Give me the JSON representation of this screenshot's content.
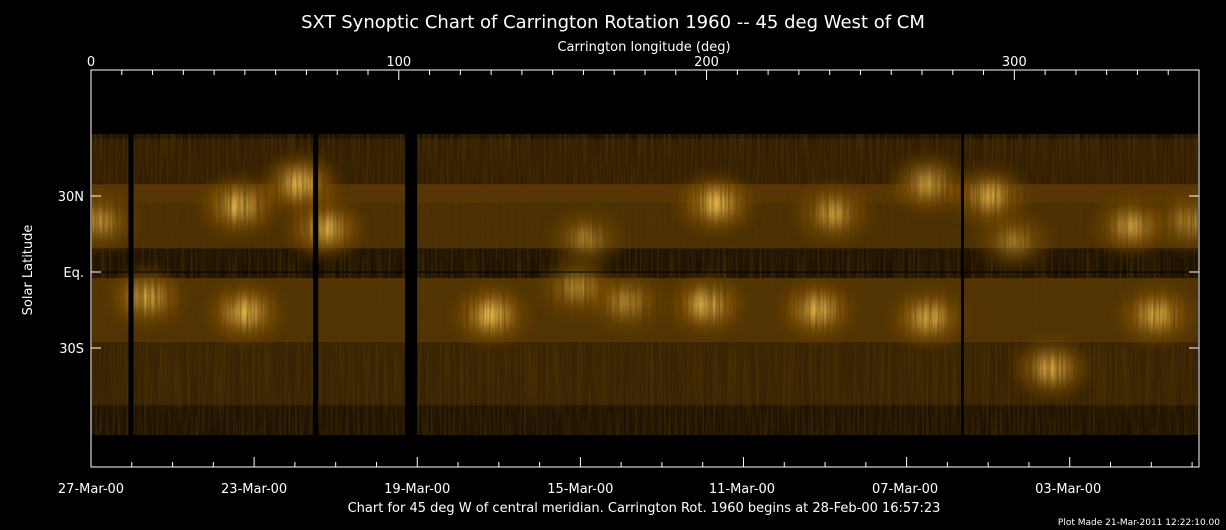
{
  "chart_data": {
    "type": "heatmap",
    "title": "SXT Synoptic Chart of Carrington Rotation 1960 -- 45 deg West of CM",
    "top_axis": {
      "label": "Carrington longitude (deg)",
      "range": [
        0,
        360
      ],
      "ticks": [
        {
          "value": 0,
          "label": "0"
        },
        {
          "value": 100,
          "label": "100"
        },
        {
          "value": 200,
          "label": "200"
        },
        {
          "value": 300,
          "label": "300"
        }
      ]
    },
    "y_axis": {
      "label": "Solar Latitude",
      "ticks": [
        {
          "value": 30,
          "label": "30N"
        },
        {
          "value": 0,
          "label": "Eq."
        },
        {
          "value": -30,
          "label": "30S"
        }
      ]
    },
    "bottom_axis": {
      "ticks": [
        {
          "longitude": 0,
          "label": "27-Mar-00"
        },
        {
          "longitude": 53,
          "label": "23-Mar-00"
        },
        {
          "longitude": 106,
          "label": "19-Mar-00"
        },
        {
          "longitude": 159,
          "label": "15-Mar-00"
        },
        {
          "longitude": 211.5,
          "label": "11-Mar-00"
        },
        {
          "longitude": 264.5,
          "label": "07-Mar-00"
        },
        {
          "longitude": 317.5,
          "label": "03-Mar-00"
        }
      ]
    },
    "data_gaps_longitude": [
      13,
      73,
      104
    ],
    "caption": "Chart for 45 deg W of central meridian.  Carrington Rot. 1960 begins at 28-Feb-00 16:57:23",
    "plot_made": "Plot Made 21-Mar-2011 12:22:10.00",
    "colors": {
      "background": "#000000",
      "emission_dark": "#1c1003",
      "emission_mid": "#8a5606",
      "emission_bright": "#ffce5a",
      "axis": "#ffffff"
    },
    "active_regions": [
      {
        "lon": 3,
        "lat": 20,
        "strength": 0.6
      },
      {
        "lon": 48,
        "lat": 26,
        "strength": 0.9
      },
      {
        "lon": 68,
        "lat": 35,
        "strength": 0.9
      },
      {
        "lon": 76,
        "lat": 17,
        "strength": 0.85
      },
      {
        "lon": 18,
        "lat": -10,
        "strength": 0.8
      },
      {
        "lon": 50,
        "lat": -16,
        "strength": 0.9
      },
      {
        "lon": 130,
        "lat": -17,
        "strength": 0.95
      },
      {
        "lon": 158,
        "lat": -6,
        "strength": 0.6
      },
      {
        "lon": 161,
        "lat": 13,
        "strength": 0.5
      },
      {
        "lon": 174,
        "lat": -12,
        "strength": 0.55
      },
      {
        "lon": 200,
        "lat": -13,
        "strength": 0.85
      },
      {
        "lon": 203,
        "lat": 27,
        "strength": 0.9
      },
      {
        "lon": 241,
        "lat": 23,
        "strength": 0.7
      },
      {
        "lon": 236,
        "lat": -15,
        "strength": 0.85
      },
      {
        "lon": 272,
        "lat": -18,
        "strength": 0.85
      },
      {
        "lon": 272,
        "lat": 35,
        "strength": 0.7
      },
      {
        "lon": 292,
        "lat": 30,
        "strength": 0.75
      },
      {
        "lon": 312,
        "lat": -38,
        "strength": 0.8
      },
      {
        "lon": 338,
        "lat": 18,
        "strength": 0.7
      },
      {
        "lon": 346,
        "lat": -17,
        "strength": 0.85
      },
      {
        "lon": 357,
        "lat": 20,
        "strength": 0.6
      },
      {
        "lon": 300,
        "lat": 12,
        "strength": 0.5
      }
    ]
  }
}
